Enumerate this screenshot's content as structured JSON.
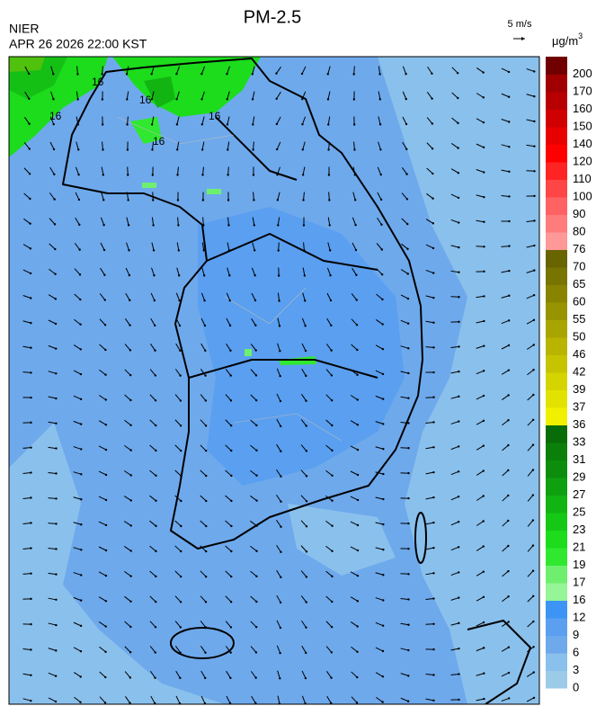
{
  "header": {
    "title": "PM-2.5",
    "agency": "NIER",
    "timestamp": "APR 26 2026 22:00 KST",
    "wind_scale": "5 m/s",
    "unit": "μg/m",
    "unit_sup": "3"
  },
  "contour_labels": [
    "16",
    "16",
    "16",
    "16",
    "16"
  ],
  "legend": [
    {
      "label": "0",
      "color": "#9ccbe8"
    },
    {
      "label": "3",
      "color": "#8ac0ec"
    },
    {
      "label": "6",
      "color": "#6ea9ec"
    },
    {
      "label": "9",
      "color": "#5a9ff0"
    },
    {
      "label": "12",
      "color": "#3c94f4"
    },
    {
      "label": "16",
      "color": "#96f596"
    },
    {
      "label": "17",
      "color": "#6ef06e"
    },
    {
      "label": "19",
      "color": "#30e830"
    },
    {
      "label": "21",
      "color": "#1cdc1c"
    },
    {
      "label": "23",
      "color": "#16c816"
    },
    {
      "label": "25",
      "color": "#12b412"
    },
    {
      "label": "27",
      "color": "#0fa00f"
    },
    {
      "label": "29",
      "color": "#0c8e0c"
    },
    {
      "label": "31",
      "color": "#0a800a"
    },
    {
      "label": "33",
      "color": "#086c08"
    },
    {
      "label": "36",
      "color": "#f0f000"
    },
    {
      "label": "37",
      "color": "#e2e200"
    },
    {
      "label": "39",
      "color": "#d4d400"
    },
    {
      "label": "42",
      "color": "#c6c400"
    },
    {
      "label": "46",
      "color": "#b8b400"
    },
    {
      "label": "50",
      "color": "#a8a400"
    },
    {
      "label": "55",
      "color": "#989400"
    },
    {
      "label": "60",
      "color": "#888400"
    },
    {
      "label": "65",
      "color": "#787400"
    },
    {
      "label": "70",
      "color": "#686400"
    },
    {
      "label": "76",
      "color": "#ff9898"
    },
    {
      "label": "80",
      "color": "#ff7c7c"
    },
    {
      "label": "90",
      "color": "#ff6262"
    },
    {
      "label": "100",
      "color": "#ff4646"
    },
    {
      "label": "110",
      "color": "#ff2424"
    },
    {
      "label": "120",
      "color": "#ff0000"
    },
    {
      "label": "140",
      "color": "#e80000"
    },
    {
      "label": "150",
      "color": "#d00000"
    },
    {
      "label": "160",
      "color": "#b80000"
    },
    {
      "label": "170",
      "color": "#a00000"
    },
    {
      "label": "200",
      "color": "#700000"
    }
  ]
}
